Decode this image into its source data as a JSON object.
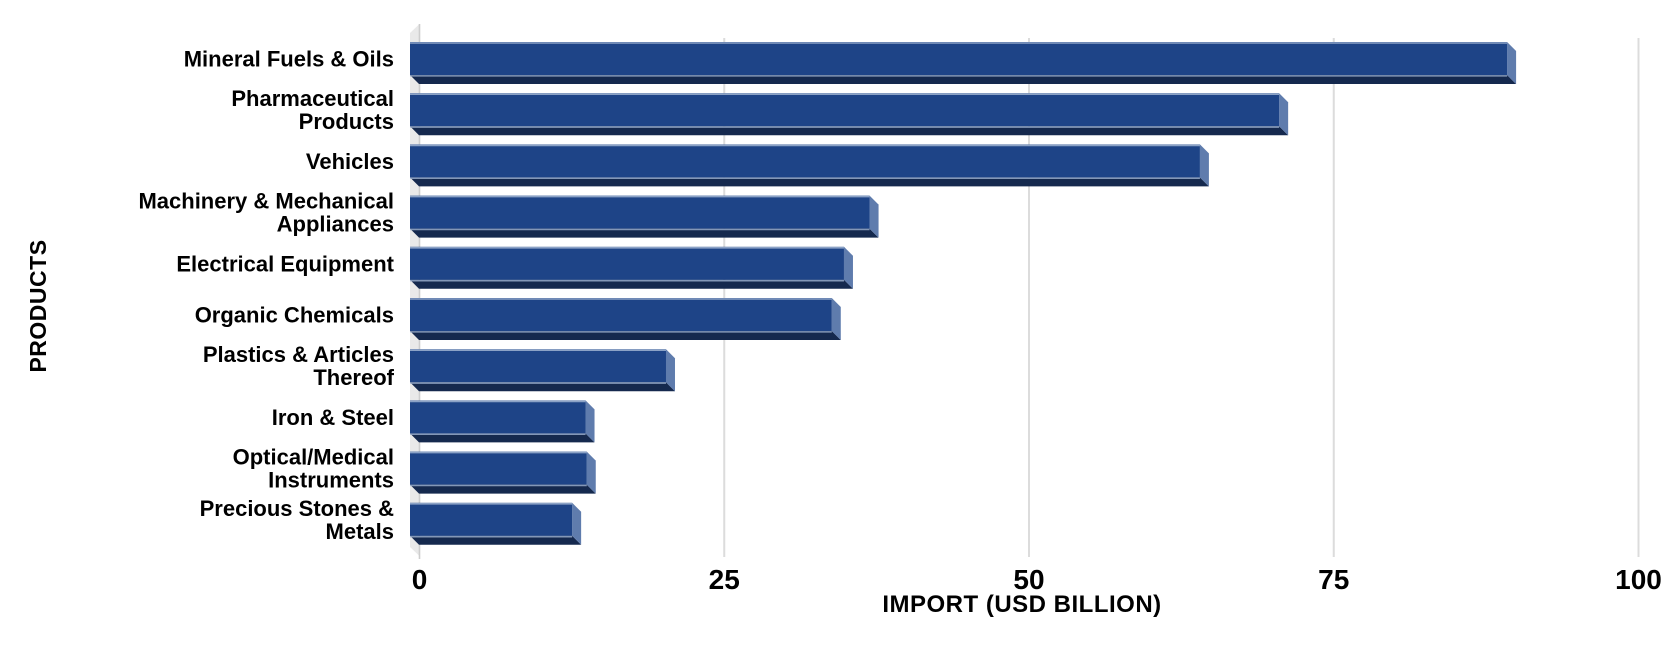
{
  "chart_data": {
    "type": "bar",
    "orientation": "horizontal",
    "xlabel": "IMPORT (USD BILLION)",
    "ylabel": "PRODUCTS",
    "categories": [
      "Mineral Fuels & Oils",
      "Pharmaceutical Products",
      "Vehicles",
      "Machinery & Mechanical Appliances",
      "Electrical Equipment",
      "Organic Chemicals",
      "Plastics & Articles Thereof",
      "Iron & Steel",
      "Optical/Medical Instruments",
      "Precious Stones & Metals"
    ],
    "label_lines": [
      [
        "Mineral Fuels & Oils"
      ],
      [
        "Pharmaceutical",
        "Products"
      ],
      [
        "Vehicles"
      ],
      [
        "Machinery & Mechanical",
        "Appliances"
      ],
      [
        "Electrical Equipment"
      ],
      [
        "Organic Chemicals"
      ],
      [
        "Plastics & Articles",
        "Thereof"
      ],
      [
        "Iron & Steel"
      ],
      [
        "Optical/Medical",
        "Instruments"
      ],
      [
        "Precious Stones &",
        "Metals"
      ]
    ],
    "values": [
      90,
      71.3,
      64.8,
      37.7,
      35.6,
      34.6,
      21,
      14.4,
      14.5,
      13.3
    ],
    "xlim": [
      0,
      100
    ],
    "xticks": [
      0,
      25,
      50,
      75,
      100
    ],
    "grid": true,
    "legend": false,
    "style": "3d-beveled-bars",
    "colors": {
      "bar_face": "#1E4487",
      "bar_side": "#5F7CAD",
      "bar_bottom": "#15294E",
      "bar_highlight": "#9FB3D2",
      "wall": "#E9E9E9",
      "gridline": "#DCDCDC",
      "axis_line": "#CDCDCD",
      "text": "#000000",
      "background": "#FFFFFF"
    }
  }
}
